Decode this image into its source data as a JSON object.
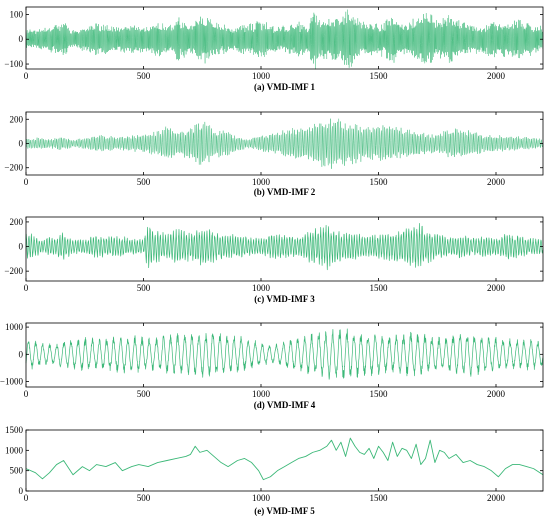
{
  "colors": {
    "series": "#3cb878",
    "axis": "#000000"
  },
  "chart_data": [
    {
      "type": "line",
      "caption": "(a) VMD-IMF 1",
      "xlim": [
        0,
        2200
      ],
      "ylim": [
        -120,
        130
      ],
      "xticks": [
        0,
        500,
        1000,
        1500,
        2000
      ],
      "xtick_labels": [
        "0",
        "500",
        "1000",
        "1500",
        "2000"
      ],
      "yticks": [
        100,
        0,
        -100
      ],
      "ytick_labels": [
        "100",
        "0",
        "−100"
      ],
      "series": [
        {
          "n_points": 2200,
          "period": 4,
          "envelope": [
            [
              0,
              40
            ],
            [
              50,
              45
            ],
            [
              100,
              55
            ],
            [
              160,
              70
            ],
            [
              200,
              40
            ],
            [
              250,
              55
            ],
            [
              300,
              65
            ],
            [
              400,
              55
            ],
            [
              500,
              60
            ],
            [
              560,
              80
            ],
            [
              600,
              55
            ],
            [
              650,
              95
            ],
            [
              700,
              60
            ],
            [
              750,
              110
            ],
            [
              800,
              70
            ],
            [
              850,
              60
            ],
            [
              900,
              55
            ],
            [
              950,
              70
            ],
            [
              1000,
              80
            ],
            [
              1050,
              60
            ],
            [
              1100,
              55
            ],
            [
              1150,
              75
            ],
            [
              1200,
              60
            ],
            [
              1230,
              125
            ],
            [
              1250,
              80
            ],
            [
              1300,
              95
            ],
            [
              1340,
              85
            ],
            [
              1370,
              130
            ],
            [
              1400,
              95
            ],
            [
              1450,
              70
            ],
            [
              1500,
              65
            ],
            [
              1540,
              90
            ],
            [
              1580,
              100
            ],
            [
              1600,
              70
            ],
            [
              1650,
              85
            ],
            [
              1700,
              110
            ],
            [
              1750,
              90
            ],
            [
              1800,
              100
            ],
            [
              1850,
              75
            ],
            [
              1900,
              60
            ],
            [
              1950,
              65
            ],
            [
              2000,
              80
            ],
            [
              2050,
              70
            ],
            [
              2100,
              85
            ],
            [
              2150,
              70
            ],
            [
              2200,
              55
            ]
          ]
        }
      ]
    },
    {
      "type": "line",
      "caption": "(b) VMD-IMF 2",
      "xlim": [
        0,
        2200
      ],
      "ylim": [
        -260,
        260
      ],
      "xticks": [
        0,
        500,
        1000,
        1500,
        2000
      ],
      "xtick_labels": [
        "0",
        "500",
        "1000",
        "1500",
        "2000"
      ],
      "yticks": [
        200,
        0,
        -200
      ],
      "ytick_labels": [
        "200",
        "0",
        "−200"
      ],
      "series": [
        {
          "n_points": 2200,
          "period": 7,
          "envelope": [
            [
              0,
              45
            ],
            [
              50,
              50
            ],
            [
              100,
              40
            ],
            [
              150,
              60
            ],
            [
              200,
              35
            ],
            [
              250,
              45
            ],
            [
              300,
              75
            ],
            [
              400,
              55
            ],
            [
              450,
              70
            ],
            [
              500,
              80
            ],
            [
              550,
              100
            ],
            [
              600,
              160
            ],
            [
              650,
              100
            ],
            [
              700,
              140
            ],
            [
              750,
              220
            ],
            [
              800,
              120
            ],
            [
              850,
              110
            ],
            [
              900,
              60
            ],
            [
              950,
              40
            ],
            [
              1000,
              70
            ],
            [
              1050,
              90
            ],
            [
              1100,
              130
            ],
            [
              1200,
              150
            ],
            [
              1250,
              200
            ],
            [
              1300,
              230
            ],
            [
              1350,
              190
            ],
            [
              1400,
              170
            ],
            [
              1450,
              140
            ],
            [
              1500,
              150
            ],
            [
              1550,
              160
            ],
            [
              1600,
              130
            ],
            [
              1650,
              110
            ],
            [
              1700,
              90
            ],
            [
              1750,
              80
            ],
            [
              1800,
              120
            ],
            [
              1850,
              130
            ],
            [
              1900,
              100
            ],
            [
              1950,
              80
            ],
            [
              2000,
              75
            ],
            [
              2050,
              65
            ],
            [
              2100,
              60
            ],
            [
              2150,
              50
            ],
            [
              2200,
              40
            ]
          ]
        }
      ]
    },
    {
      "type": "line",
      "caption": "(c) VMD-IMF 3",
      "xlim": [
        0,
        2200
      ],
      "ylim": [
        -280,
        240
      ],
      "xticks": [
        0,
        500,
        1000,
        1500,
        2000
      ],
      "xtick_labels": [
        "0",
        "500",
        "1000",
        "1500",
        "2000"
      ],
      "yticks": [
        200,
        0,
        -200
      ],
      "ytick_labels": [
        "200",
        "0",
        "−200"
      ],
      "series": [
        {
          "n_points": 2200,
          "period": 11,
          "envelope": [
            [
              0,
              120
            ],
            [
              30,
              100
            ],
            [
              70,
              50
            ],
            [
              100,
              90
            ],
            [
              130,
              70
            ],
            [
              150,
              130
            ],
            [
              200,
              60
            ],
            [
              250,
              60
            ],
            [
              300,
              100
            ],
            [
              350,
              80
            ],
            [
              400,
              90
            ],
            [
              450,
              70
            ],
            [
              500,
              60
            ],
            [
              520,
              190
            ],
            [
              560,
              130
            ],
            [
              600,
              110
            ],
            [
              650,
              150
            ],
            [
              700,
              120
            ],
            [
              750,
              160
            ],
            [
              800,
              130
            ],
            [
              850,
              90
            ],
            [
              900,
              110
            ],
            [
              950,
              80
            ],
            [
              1000,
              70
            ],
            [
              1050,
              110
            ],
            [
              1100,
              100
            ],
            [
              1150,
              80
            ],
            [
              1200,
              130
            ],
            [
              1250,
              160
            ],
            [
              1280,
              200
            ],
            [
              1300,
              150
            ],
            [
              1350,
              120
            ],
            [
              1400,
              110
            ],
            [
              1450,
              90
            ],
            [
              1500,
              100
            ],
            [
              1550,
              120
            ],
            [
              1600,
              140
            ],
            [
              1650,
              180
            ],
            [
              1680,
              200
            ],
            [
              1700,
              140
            ],
            [
              1750,
              110
            ],
            [
              1800,
              80
            ],
            [
              1850,
              100
            ],
            [
              1900,
              70
            ],
            [
              1950,
              90
            ],
            [
              2000,
              70
            ],
            [
              2050,
              110
            ],
            [
              2100,
              90
            ],
            [
              2150,
              70
            ],
            [
              2200,
              60
            ]
          ]
        }
      ]
    },
    {
      "type": "line",
      "caption": "(d) VMD-IMF 4",
      "xlim": [
        0,
        2200
      ],
      "ylim": [
        -1200,
        1150
      ],
      "xticks": [
        0,
        500,
        1000,
        1500,
        2000
      ],
      "xtick_labels": [
        "0",
        "500",
        "1000",
        "1500",
        "2000"
      ],
      "yticks": [
        1000,
        0,
        -1000
      ],
      "ytick_labels": [
        "1000",
        "0",
        "−1000"
      ],
      "series": [
        {
          "n_points": 2200,
          "period": 30,
          "envelope": [
            [
              0,
              650
            ],
            [
              60,
              450
            ],
            [
              120,
              400
            ],
            [
              180,
              550
            ],
            [
              250,
              650
            ],
            [
              300,
              600
            ],
            [
              380,
              650
            ],
            [
              450,
              750
            ],
            [
              520,
              600
            ],
            [
              580,
              700
            ],
            [
              650,
              800
            ],
            [
              700,
              850
            ],
            [
              750,
              900
            ],
            [
              800,
              850
            ],
            [
              850,
              750
            ],
            [
              900,
              700
            ],
            [
              950,
              600
            ],
            [
              1000,
              450
            ],
            [
              1050,
              350
            ],
            [
              1100,
              500
            ],
            [
              1150,
              650
            ],
            [
              1200,
              750
            ],
            [
              1250,
              900
            ],
            [
              1300,
              950
            ],
            [
              1350,
              1000
            ],
            [
              1400,
              900
            ],
            [
              1450,
              850
            ],
            [
              1500,
              800
            ],
            [
              1550,
              700
            ],
            [
              1600,
              800
            ],
            [
              1650,
              850
            ],
            [
              1700,
              750
            ],
            [
              1750,
              650
            ],
            [
              1800,
              700
            ],
            [
              1850,
              800
            ],
            [
              1900,
              850
            ],
            [
              1950,
              750
            ],
            [
              2000,
              650
            ],
            [
              2050,
              600
            ],
            [
              2100,
              550
            ],
            [
              2150,
              600
            ],
            [
              2200,
              500
            ]
          ]
        }
      ]
    },
    {
      "type": "line",
      "caption": "(e) VMD-IMF 5",
      "xlim": [
        0,
        2200
      ],
      "ylim": [
        0,
        1500
      ],
      "xticks": [
        0,
        500,
        1000,
        1500,
        2000
      ],
      "xtick_labels": [
        "0",
        "500",
        "1000",
        "1500",
        "2000"
      ],
      "yticks": [
        1500,
        1000,
        500,
        0
      ],
      "ytick_labels": [
        "1500",
        "1000",
        "500",
        "0"
      ],
      "series": [
        {
          "x": [
            0,
            40,
            70,
            100,
            130,
            160,
            200,
            240,
            270,
            300,
            340,
            380,
            410,
            450,
            480,
            520,
            560,
            600,
            640,
            680,
            700,
            720,
            740,
            770,
            800,
            830,
            860,
            900,
            930,
            960,
            990,
            1010,
            1040,
            1070,
            1100,
            1130,
            1160,
            1190,
            1220,
            1250,
            1280,
            1300,
            1320,
            1340,
            1360,
            1380,
            1400,
            1420,
            1440,
            1460,
            1480,
            1500,
            1520,
            1540,
            1560,
            1580,
            1600,
            1620,
            1640,
            1660,
            1680,
            1700,
            1720,
            1740,
            1760,
            1780,
            1800,
            1830,
            1860,
            1890,
            1920,
            1950,
            1980,
            2010,
            2040,
            2070,
            2100,
            2130,
            2160,
            2200
          ],
          "y": [
            550,
            450,
            300,
            450,
            650,
            750,
            400,
            600,
            500,
            650,
            600,
            700,
            500,
            600,
            650,
            600,
            700,
            750,
            800,
            850,
            900,
            1100,
            950,
            1000,
            850,
            700,
            600,
            750,
            800,
            700,
            500,
            280,
            350,
            500,
            600,
            700,
            800,
            850,
            950,
            1000,
            1100,
            1250,
            1000,
            1200,
            850,
            1300,
            1100,
            950,
            900,
            1050,
            800,
            1100,
            950,
            750,
            1200,
            850,
            1050,
            1000,
            800,
            1150,
            650,
            800,
            1250,
            700,
            1000,
            950,
            800,
            900,
            700,
            750,
            650,
            600,
            500,
            350,
            550,
            650,
            650,
            600,
            550,
            400
          ]
        }
      ]
    }
  ]
}
